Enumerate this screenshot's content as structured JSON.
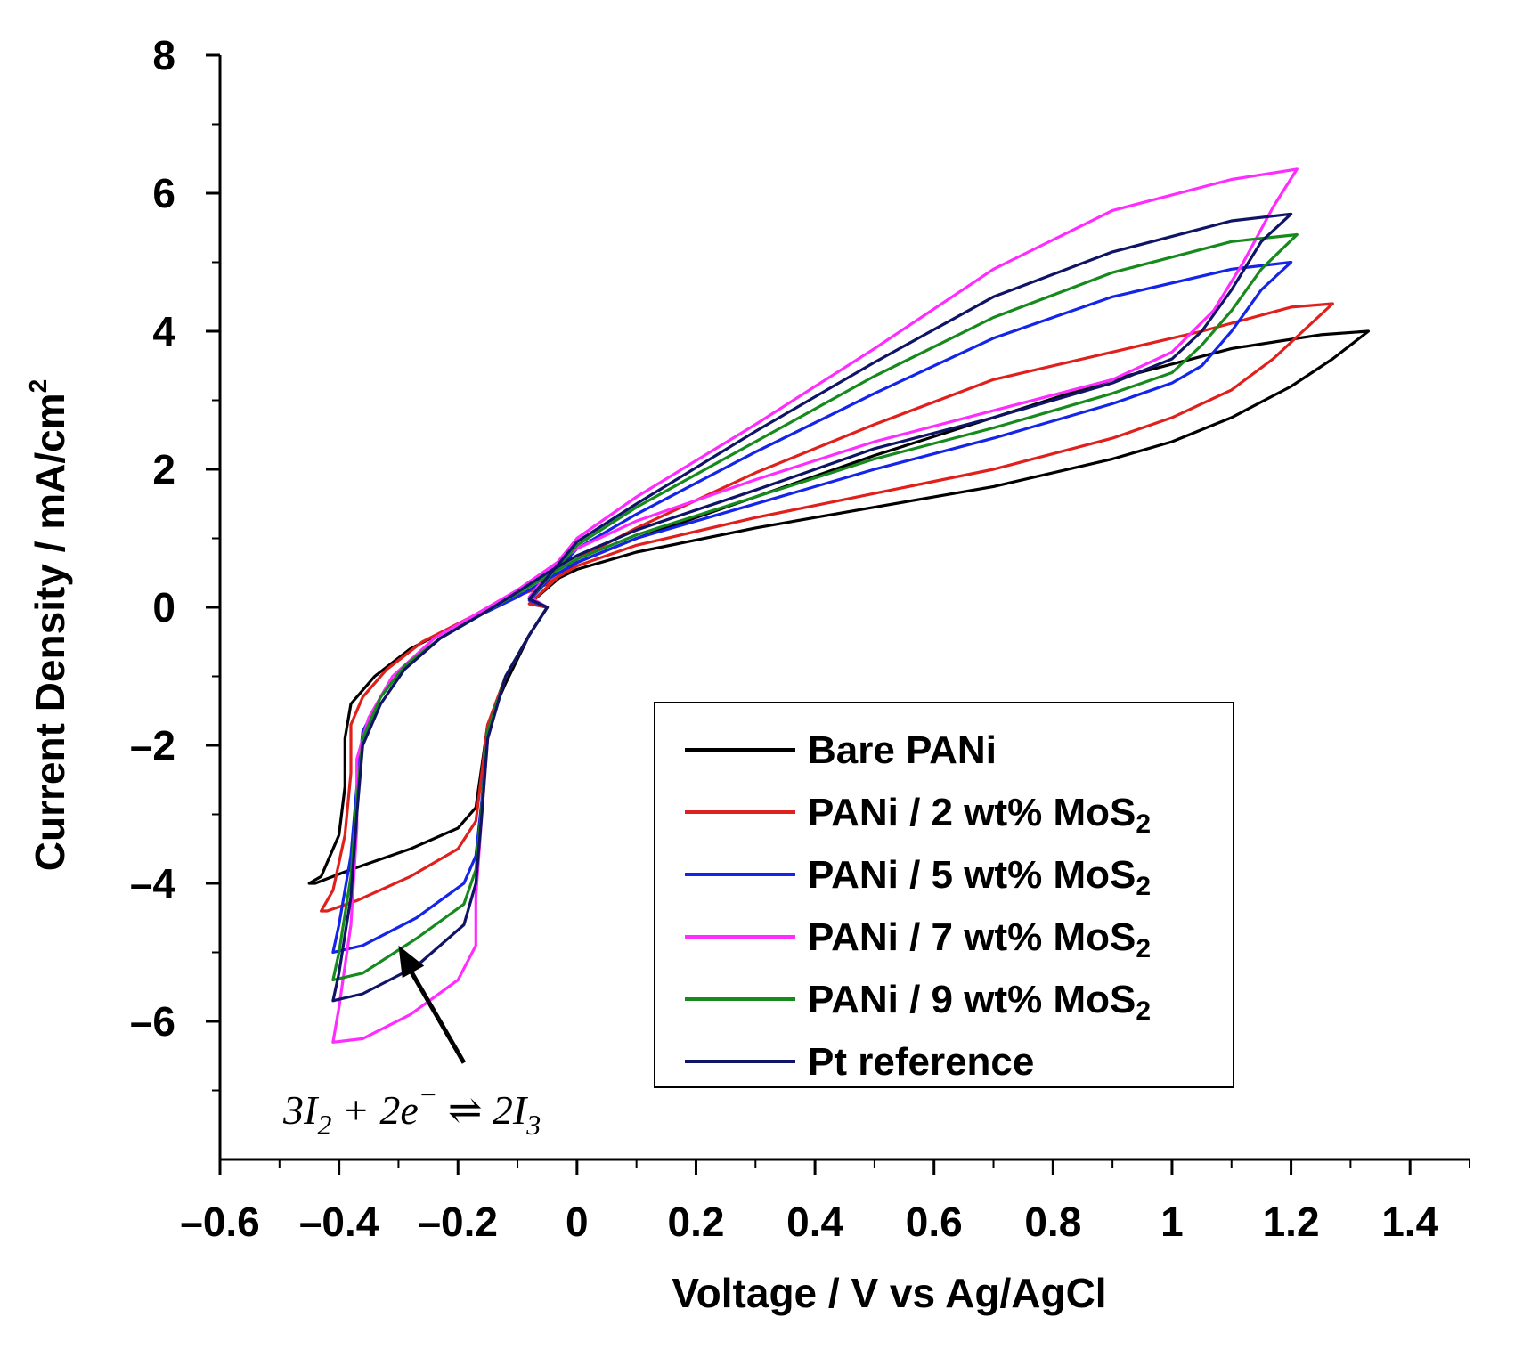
{
  "chart_data": {
    "type": "line",
    "title": "",
    "xlabel": "Voltage / V vs Ag/AgCl",
    "ylabel": "Current Density / mA/cm",
    "ylabel_superscript": "2",
    "xlim": [
      -0.6,
      1.5
    ],
    "ylim": [
      -8,
      8
    ],
    "x_ticks": [
      {
        "value": -0.6,
        "label": "–0.6"
      },
      {
        "value": -0.4,
        "label": "–0.4"
      },
      {
        "value": -0.2,
        "label": "–0.2"
      },
      {
        "value": 0,
        "label": "0"
      },
      {
        "value": 0.2,
        "label": "0.2"
      },
      {
        "value": 0.4,
        "label": "0.4"
      },
      {
        "value": 0.6,
        "label": "0.6"
      },
      {
        "value": 0.8,
        "label": "0.8"
      },
      {
        "value": 1.0,
        "label": "1"
      },
      {
        "value": 1.2,
        "label": "1.2"
      },
      {
        "value": 1.4,
        "label": "1.4"
      }
    ],
    "y_ticks": [
      {
        "value": 8,
        "label": "8"
      },
      {
        "value": 6,
        "label": "6"
      },
      {
        "value": 4,
        "label": "4"
      },
      {
        "value": 2,
        "label": "2"
      },
      {
        "value": 0,
        "label": "0"
      },
      {
        "value": -2,
        "label": "–2"
      },
      {
        "value": -4,
        "label": "–4"
      },
      {
        "value": -6,
        "label": "–6"
      }
    ],
    "annotation": {
      "text_parts": [
        "3I",
        "2",
        " + 2e",
        "−",
        "  ⇌ 2I",
        "3"
      ],
      "arrow_from": [
        -0.19,
        -6.6
      ],
      "arrow_to": [
        -0.3,
        -4.9
      ]
    },
    "legend_position": "bottom-right",
    "series": [
      {
        "name": "Bare PANi",
        "legend": [
          "Bare PANi"
        ],
        "color": "#000000",
        "points": [
          [
            -0.05,
            0
          ],
          [
            -0.08,
            -0.4
          ],
          [
            -0.12,
            -1.1
          ],
          [
            -0.15,
            -1.7
          ],
          [
            -0.16,
            -2.3
          ],
          [
            -0.17,
            -2.9
          ],
          [
            -0.2,
            -3.2
          ],
          [
            -0.28,
            -3.5
          ],
          [
            -0.38,
            -3.8
          ],
          [
            -0.44,
            -4.0
          ],
          [
            -0.45,
            -4.0
          ],
          [
            -0.43,
            -3.9
          ],
          [
            -0.4,
            -3.3
          ],
          [
            -0.39,
            -2.6
          ],
          [
            -0.39,
            -1.9
          ],
          [
            -0.38,
            -1.4
          ],
          [
            -0.34,
            -1.0
          ],
          [
            -0.28,
            -0.6
          ],
          [
            -0.2,
            -0.25
          ],
          [
            -0.12,
            0.1
          ],
          [
            -0.06,
            0.3
          ],
          [
            0.0,
            0.55
          ],
          [
            0.1,
            0.8
          ],
          [
            0.3,
            1.15
          ],
          [
            0.5,
            1.45
          ],
          [
            0.7,
            1.75
          ],
          [
            0.9,
            2.15
          ],
          [
            1.0,
            2.4
          ],
          [
            1.1,
            2.75
          ],
          [
            1.2,
            3.2
          ],
          [
            1.27,
            3.6
          ],
          [
            1.33,
            4.0
          ],
          [
            1.25,
            3.95
          ],
          [
            1.1,
            3.75
          ],
          [
            0.9,
            3.3
          ],
          [
            0.7,
            2.75
          ],
          [
            0.5,
            2.2
          ],
          [
            0.3,
            1.6
          ],
          [
            0.1,
            1.0
          ],
          [
            0.0,
            0.65
          ],
          [
            -0.08,
            0.05
          ]
        ]
      },
      {
        "name": "PANi / 2 wt% MoS2",
        "legend": [
          "PANi / 2 wt% MoS",
          "2"
        ],
        "color": "#e0201c",
        "points": [
          [
            -0.05,
            0
          ],
          [
            -0.08,
            -0.4
          ],
          [
            -0.12,
            -1.0
          ],
          [
            -0.15,
            -1.7
          ],
          [
            -0.16,
            -2.4
          ],
          [
            -0.17,
            -3.1
          ],
          [
            -0.2,
            -3.5
          ],
          [
            -0.28,
            -3.9
          ],
          [
            -0.37,
            -4.25
          ],
          [
            -0.42,
            -4.4
          ],
          [
            -0.43,
            -4.4
          ],
          [
            -0.41,
            -4.1
          ],
          [
            -0.39,
            -3.3
          ],
          [
            -0.38,
            -2.4
          ],
          [
            -0.38,
            -1.7
          ],
          [
            -0.36,
            -1.3
          ],
          [
            -0.32,
            -0.9
          ],
          [
            -0.26,
            -0.5
          ],
          [
            -0.18,
            -0.15
          ],
          [
            -0.12,
            0.1
          ],
          [
            -0.06,
            0.3
          ],
          [
            0.0,
            0.6
          ],
          [
            0.1,
            0.9
          ],
          [
            0.3,
            1.3
          ],
          [
            0.5,
            1.65
          ],
          [
            0.7,
            2.0
          ],
          [
            0.9,
            2.45
          ],
          [
            1.0,
            2.75
          ],
          [
            1.1,
            3.15
          ],
          [
            1.17,
            3.6
          ],
          [
            1.22,
            4.0
          ],
          [
            1.27,
            4.4
          ],
          [
            1.2,
            4.35
          ],
          [
            1.05,
            4.0
          ],
          [
            0.9,
            3.7
          ],
          [
            0.7,
            3.3
          ],
          [
            0.5,
            2.65
          ],
          [
            0.3,
            1.95
          ],
          [
            0.1,
            1.15
          ],
          [
            0.0,
            0.7
          ],
          [
            -0.08,
            0.05
          ]
        ]
      },
      {
        "name": "PANi / 5 wt% MoS2",
        "legend": [
          "PANi / 5 wt% MoS",
          "2"
        ],
        "color": "#1424e8",
        "points": [
          [
            -0.05,
            0
          ],
          [
            -0.08,
            -0.4
          ],
          [
            -0.12,
            -1.0
          ],
          [
            -0.15,
            -1.8
          ],
          [
            -0.16,
            -2.8
          ],
          [
            -0.17,
            -3.6
          ],
          [
            -0.19,
            -4.0
          ],
          [
            -0.27,
            -4.5
          ],
          [
            -0.36,
            -4.9
          ],
          [
            -0.41,
            -5.0
          ],
          [
            -0.4,
            -4.6
          ],
          [
            -0.38,
            -3.6
          ],
          [
            -0.37,
            -2.6
          ],
          [
            -0.36,
            -1.8
          ],
          [
            -0.33,
            -1.3
          ],
          [
            -0.29,
            -0.85
          ],
          [
            -0.23,
            -0.45
          ],
          [
            -0.16,
            -0.1
          ],
          [
            -0.1,
            0.15
          ],
          [
            -0.05,
            0.4
          ],
          [
            0.0,
            0.65
          ],
          [
            0.1,
            1.0
          ],
          [
            0.3,
            1.5
          ],
          [
            0.5,
            2.0
          ],
          [
            0.7,
            2.45
          ],
          [
            0.9,
            2.95
          ],
          [
            1.0,
            3.25
          ],
          [
            1.05,
            3.5
          ],
          [
            1.1,
            4.0
          ],
          [
            1.15,
            4.6
          ],
          [
            1.2,
            5.0
          ],
          [
            1.1,
            4.9
          ],
          [
            0.9,
            4.5
          ],
          [
            0.7,
            3.9
          ],
          [
            0.5,
            3.1
          ],
          [
            0.3,
            2.25
          ],
          [
            0.1,
            1.35
          ],
          [
            0.0,
            0.85
          ],
          [
            -0.08,
            0.1
          ]
        ]
      },
      {
        "name": "PANi / 7 wt% MoS2",
        "legend": [
          "PANi / 7 wt% MoS",
          "2"
        ],
        "color": "#ff2cff",
        "points": [
          [
            -0.05,
            0
          ],
          [
            -0.08,
            -0.4
          ],
          [
            -0.12,
            -1.0
          ],
          [
            -0.15,
            -1.9
          ],
          [
            -0.16,
            -3.0
          ],
          [
            -0.17,
            -4.2
          ],
          [
            -0.17,
            -4.9
          ],
          [
            -0.2,
            -5.4
          ],
          [
            -0.28,
            -5.9
          ],
          [
            -0.36,
            -6.25
          ],
          [
            -0.41,
            -6.3
          ],
          [
            -0.4,
            -5.8
          ],
          [
            -0.38,
            -4.6
          ],
          [
            -0.37,
            -3.2
          ],
          [
            -0.37,
            -2.2
          ],
          [
            -0.35,
            -1.6
          ],
          [
            -0.31,
            -1.0
          ],
          [
            -0.24,
            -0.45
          ],
          [
            -0.16,
            -0.05
          ],
          [
            -0.1,
            0.25
          ],
          [
            -0.05,
            0.55
          ],
          [
            0.0,
            0.85
          ],
          [
            0.1,
            1.25
          ],
          [
            0.3,
            1.85
          ],
          [
            0.5,
            2.4
          ],
          [
            0.7,
            2.85
          ],
          [
            0.9,
            3.3
          ],
          [
            1.0,
            3.7
          ],
          [
            1.07,
            4.3
          ],
          [
            1.12,
            5.0
          ],
          [
            1.17,
            5.8
          ],
          [
            1.21,
            6.35
          ],
          [
            1.1,
            6.2
          ],
          [
            0.9,
            5.75
          ],
          [
            0.7,
            4.9
          ],
          [
            0.5,
            3.75
          ],
          [
            0.3,
            2.65
          ],
          [
            0.1,
            1.6
          ],
          [
            0.0,
            1.0
          ],
          [
            -0.08,
            0.15
          ]
        ]
      },
      {
        "name": "PANi / 9 wt% MoS2",
        "legend": [
          "PANi / 9 wt% MoS",
          "2"
        ],
        "color": "#178a1e",
        "points": [
          [
            -0.05,
            0
          ],
          [
            -0.08,
            -0.4
          ],
          [
            -0.12,
            -1.0
          ],
          [
            -0.15,
            -1.8
          ],
          [
            -0.16,
            -2.9
          ],
          [
            -0.17,
            -3.8
          ],
          [
            -0.19,
            -4.3
          ],
          [
            -0.27,
            -4.8
          ],
          [
            -0.36,
            -5.3
          ],
          [
            -0.41,
            -5.4
          ],
          [
            -0.4,
            -5.0
          ],
          [
            -0.38,
            -3.9
          ],
          [
            -0.37,
            -2.8
          ],
          [
            -0.36,
            -1.9
          ],
          [
            -0.33,
            -1.3
          ],
          [
            -0.29,
            -0.85
          ],
          [
            -0.23,
            -0.45
          ],
          [
            -0.16,
            -0.1
          ],
          [
            -0.1,
            0.2
          ],
          [
            -0.05,
            0.45
          ],
          [
            0.0,
            0.7
          ],
          [
            0.1,
            1.05
          ],
          [
            0.3,
            1.6
          ],
          [
            0.5,
            2.15
          ],
          [
            0.7,
            2.6
          ],
          [
            0.9,
            3.1
          ],
          [
            1.0,
            3.4
          ],
          [
            1.05,
            3.8
          ],
          [
            1.1,
            4.3
          ],
          [
            1.15,
            4.9
          ],
          [
            1.21,
            5.4
          ],
          [
            1.1,
            5.3
          ],
          [
            0.9,
            4.85
          ],
          [
            0.7,
            4.2
          ],
          [
            0.5,
            3.35
          ],
          [
            0.3,
            2.4
          ],
          [
            0.1,
            1.45
          ],
          [
            0.0,
            0.9
          ],
          [
            -0.08,
            0.12
          ]
        ]
      },
      {
        "name": "Pt reference",
        "legend": [
          "Pt reference"
        ],
        "color": "#0f1466",
        "points": [
          [
            -0.05,
            0
          ],
          [
            -0.08,
            -0.4
          ],
          [
            -0.12,
            -1.0
          ],
          [
            -0.15,
            -1.9
          ],
          [
            -0.16,
            -3.0
          ],
          [
            -0.17,
            -4.0
          ],
          [
            -0.19,
            -4.6
          ],
          [
            -0.27,
            -5.2
          ],
          [
            -0.36,
            -5.6
          ],
          [
            -0.41,
            -5.7
          ],
          [
            -0.4,
            -5.3
          ],
          [
            -0.38,
            -4.2
          ],
          [
            -0.37,
            -3.0
          ],
          [
            -0.36,
            -2.0
          ],
          [
            -0.33,
            -1.4
          ],
          [
            -0.29,
            -0.9
          ],
          [
            -0.23,
            -0.45
          ],
          [
            -0.16,
            -0.1
          ],
          [
            -0.1,
            0.22
          ],
          [
            -0.05,
            0.5
          ],
          [
            0.0,
            0.75
          ],
          [
            0.1,
            1.12
          ],
          [
            0.3,
            1.7
          ],
          [
            0.5,
            2.3
          ],
          [
            0.7,
            2.75
          ],
          [
            0.9,
            3.25
          ],
          [
            1.0,
            3.6
          ],
          [
            1.05,
            4.0
          ],
          [
            1.1,
            4.6
          ],
          [
            1.15,
            5.3
          ],
          [
            1.2,
            5.7
          ],
          [
            1.1,
            5.6
          ],
          [
            0.9,
            5.15
          ],
          [
            0.7,
            4.5
          ],
          [
            0.5,
            3.55
          ],
          [
            0.3,
            2.55
          ],
          [
            0.1,
            1.5
          ],
          [
            0.0,
            0.95
          ],
          [
            -0.08,
            0.12
          ]
        ]
      }
    ]
  }
}
